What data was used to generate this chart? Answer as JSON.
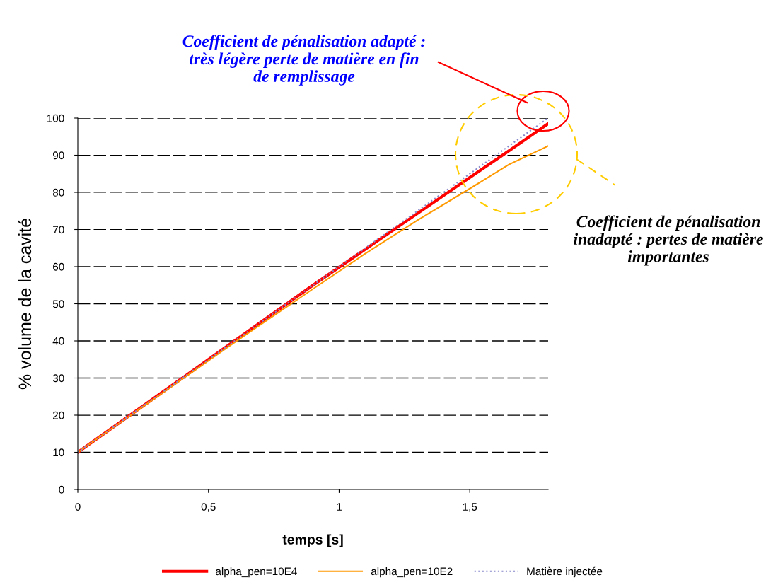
{
  "chart_data": {
    "type": "line",
    "xlabel": "temps [s]",
    "ylabel": "% volume de la cavité",
    "xlim": [
      0,
      1.8
    ],
    "xticks": [
      0,
      {
        "value": 0.5,
        "label": "0,5"
      },
      1,
      {
        "value": 1.5,
        "label": "1,5"
      }
    ],
    "ylim": [
      0,
      100
    ],
    "yticks": [
      0,
      10,
      20,
      30,
      40,
      50,
      60,
      70,
      80,
      90,
      100
    ],
    "grid": "y",
    "legend": "bottom",
    "marker": "none",
    "series": [
      {
        "name": "alpha_pen=10E4",
        "color": "#ff0000",
        "x": [
          0,
          0.3,
          0.6,
          0.9,
          1.2,
          1.5,
          1.65,
          1.8
        ],
        "values": [
          10,
          25,
          40,
          55,
          69.5,
          84,
          91.2,
          98.5
        ]
      },
      {
        "name": "alpha_pen=10E2",
        "color": "#ff9900",
        "x": [
          0,
          0.3,
          0.6,
          0.9,
          1.1,
          1.3,
          1.5,
          1.65,
          1.8
        ],
        "values": [
          10,
          24.8,
          39.6,
          54,
          63.5,
          72.5,
          81,
          87.5,
          92.5
        ]
      },
      {
        "name": "Matière injectée",
        "color": "#8888cc",
        "line_style": "dotted",
        "x": [
          0,
          0.3,
          0.6,
          0.9,
          1.2,
          1.5,
          1.8
        ],
        "values": [
          10,
          25,
          40,
          55,
          70,
          85,
          100
        ]
      }
    ],
    "annotations": [
      "Coefficient de pénalisation adapté : très légère perte de matière en fin de remplissage",
      "Coefficient de pénalisation inadapté : pertes de matière importantes"
    ]
  }
}
